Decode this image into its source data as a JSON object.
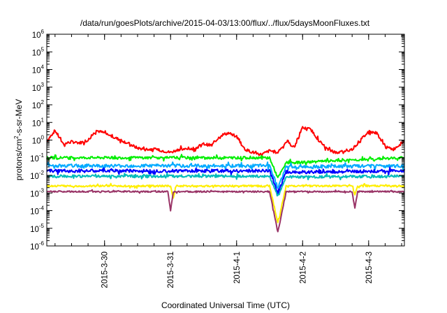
{
  "chart_data": {
    "type": "line",
    "title": "/data/run/goesPlots/archive/2015-04-03/13:00/flux/../flux/5daysMoonFluxes.txt",
    "xlabel": "Coordinated Universal Time (UTC)",
    "ylabel": {
      "base": "protons/cm",
      "sup": "2",
      "rest": "-s-sr-MeV"
    },
    "yscale": "log",
    "ylim": [
      1e-06,
      1000000.0
    ],
    "y_ticks": [
      {
        "value": 1e-06,
        "base": "10",
        "exp": "-6"
      },
      {
        "value": 1e-05,
        "base": "10",
        "exp": "-5"
      },
      {
        "value": 0.0001,
        "base": "10",
        "exp": "-4"
      },
      {
        "value": 0.001,
        "base": "10",
        "exp": "-3"
      },
      {
        "value": 0.01,
        "base": "10",
        "exp": "-2"
      },
      {
        "value": 0.1,
        "base": "10",
        "exp": "-1"
      },
      {
        "value": 1,
        "base": "10",
        "exp": "0"
      },
      {
        "value": 10.0,
        "base": "10",
        "exp": "1"
      },
      {
        "value": 100.0,
        "base": "10",
        "exp": "2"
      },
      {
        "value": 1000.0,
        "base": "10",
        "exp": "3"
      },
      {
        "value": 10000.0,
        "base": "10",
        "exp": "4"
      },
      {
        "value": 100000.0,
        "base": "10",
        "exp": "5"
      },
      {
        "value": 1000000.0,
        "base": "10",
        "exp": "6"
      }
    ],
    "xlim": [
      "2015-03-29T03:00",
      "2015-04-03T13:00"
    ],
    "x_ticks": [
      {
        "value": "2015-03-30T00:00",
        "label": "2015-3-30"
      },
      {
        "value": "2015-03-31T00:00",
        "label": "2015-3-31"
      },
      {
        "value": "2015-04-01T00:00",
        "label": "2015-4-1"
      },
      {
        "value": "2015-04-02T00:00",
        "label": "2015-4-2"
      },
      {
        "value": "2015-04-03T00:00",
        "label": "2015-4-3"
      }
    ],
    "grid": false,
    "series": [
      {
        "color": "#ff0000",
        "noise": 0.08,
        "x": [
          "2015-03-29T03:00",
          "2015-03-29T06:00",
          "2015-03-29T09:00",
          "2015-03-29T12:00",
          "2015-03-29T15:00",
          "2015-03-29T18:00",
          "2015-03-29T21:00",
          "2015-03-30T00:00",
          "2015-03-30T03:00",
          "2015-03-30T06:00",
          "2015-03-30T09:00",
          "2015-03-30T12:00",
          "2015-03-30T15:00",
          "2015-03-30T18:00",
          "2015-03-30T21:00",
          "2015-03-31T00:00",
          "2015-03-31T03:00",
          "2015-03-31T06:00",
          "2015-03-31T09:00",
          "2015-03-31T12:00",
          "2015-03-31T15:00",
          "2015-03-31T18:00",
          "2015-03-31T21:00",
          "2015-04-01T00:00",
          "2015-04-01T03:00",
          "2015-04-01T06:00",
          "2015-04-01T09:00",
          "2015-04-01T12:00",
          "2015-04-01T15:00",
          "2015-04-01T18:00",
          "2015-04-01T21:00",
          "2015-04-02T00:00",
          "2015-04-02T03:00",
          "2015-04-02T06:00",
          "2015-04-02T09:00",
          "2015-04-02T12:00",
          "2015-04-02T15:00",
          "2015-04-02T18:00",
          "2015-04-02T21:00",
          "2015-04-03T00:00",
          "2015-04-03T03:00",
          "2015-04-03T06:00",
          "2015-04-03T09:00",
          "2015-04-03T13:00"
        ],
        "y": [
          0.9,
          3.5,
          0.6,
          0.8,
          0.7,
          1.0,
          3.5,
          2.5,
          1.5,
          1.0,
          0.6,
          0.35,
          0.3,
          0.3,
          0.25,
          0.2,
          0.3,
          0.3,
          0.35,
          0.6,
          0.5,
          1.8,
          2.5,
          1.6,
          0.3,
          0.2,
          0.15,
          0.25,
          0.2,
          0.8,
          0.4,
          5.0,
          4.0,
          0.9,
          0.3,
          0.2,
          0.2,
          0.3,
          1.0,
          3.0,
          2.5,
          0.4,
          0.3,
          0.9
        ]
      },
      {
        "color": "#00ee00",
        "noise": 0.07,
        "x": [
          "2015-03-29T03:00",
          "2015-04-01T12:00",
          "2015-04-01T15:00",
          "2015-04-01T18:00",
          "2015-04-03T13:00"
        ],
        "y": [
          0.1,
          0.1,
          0.007,
          0.05,
          0.1
        ]
      },
      {
        "color": "#00aaff",
        "noise": 0.09,
        "x": [
          "2015-03-29T03:00",
          "2015-04-01T12:00",
          "2015-04-01T15:00",
          "2015-04-01T18:00",
          "2015-04-03T13:00"
        ],
        "y": [
          0.035,
          0.035,
          0.002,
          0.03,
          0.035
        ]
      },
      {
        "color": "#0000ff",
        "noise": 0.09,
        "x": [
          "2015-03-29T03:00",
          "2015-04-01T12:00",
          "2015-04-01T15:00",
          "2015-04-01T18:00",
          "2015-04-03T13:00"
        ],
        "y": [
          0.018,
          0.018,
          0.001,
          0.015,
          0.018
        ]
      },
      {
        "color": "#00bbbb",
        "noise": 0.07,
        "x": [
          "2015-03-29T03:00",
          "2015-04-01T12:00",
          "2015-04-01T15:00",
          "2015-04-01T18:00",
          "2015-04-03T13:00"
        ],
        "y": [
          0.009,
          0.009,
          0.0006,
          0.008,
          0.009
        ]
      },
      {
        "color": "#ffee00",
        "noise": 0.05,
        "x": [
          "2015-03-29T03:00",
          "2015-03-31T00:00",
          "2015-03-31T01:00",
          "2015-03-31T02:00",
          "2015-04-01T12:00",
          "2015-04-01T15:00",
          "2015-04-01T18:00",
          "2015-04-02T18:00",
          "2015-04-02T19:00",
          "2015-04-02T20:00",
          "2015-04-03T13:00"
        ],
        "y": [
          0.0025,
          0.0025,
          0.0005,
          0.0025,
          0.0025,
          2e-05,
          0.0025,
          0.0025,
          0.0008,
          0.0025,
          0.0025
        ]
      },
      {
        "color": "#993366",
        "noise": 0.04,
        "x": [
          "2015-03-29T03:00",
          "2015-03-30T23:00",
          "2015-03-31T00:00",
          "2015-03-31T01:00",
          "2015-04-01T12:00",
          "2015-04-01T15:00",
          "2015-04-01T18:00",
          "2015-04-02T18:00",
          "2015-04-02T19:00",
          "2015-04-02T20:00",
          "2015-04-03T13:00"
        ],
        "y": [
          0.0012,
          0.0012,
          0.0001,
          0.0012,
          0.0012,
          6e-06,
          0.0012,
          0.0012,
          0.00015,
          0.0012,
          0.0012
        ]
      }
    ]
  }
}
